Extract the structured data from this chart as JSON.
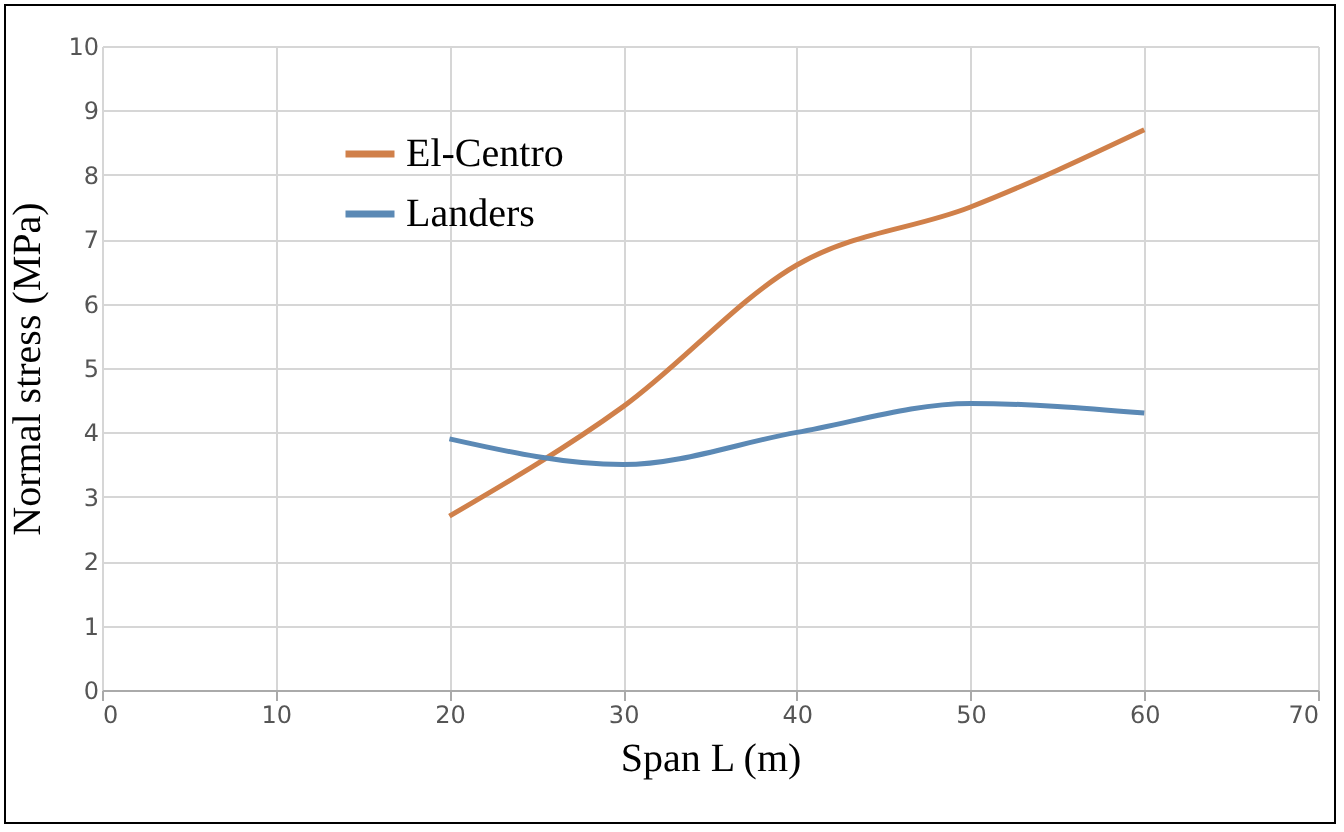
{
  "chart_data": {
    "type": "line",
    "xlabel": "Span L (m)",
    "ylabel": "Normal stress (MPa)",
    "x": [
      20,
      30,
      40,
      50,
      60
    ],
    "series": [
      {
        "name": "El-Centro",
        "color": "#d0804a",
        "values": [
          2.7,
          4.4,
          6.6,
          7.5,
          8.7
        ]
      },
      {
        "name": "Landers",
        "color": "#5b89b5",
        "values": [
          3.9,
          3.5,
          4.0,
          4.45,
          4.3
        ]
      }
    ],
    "xlim": [
      0,
      70
    ],
    "xticks": [
      0,
      10,
      20,
      30,
      40,
      50,
      60,
      70
    ],
    "ylim": [
      0,
      10
    ],
    "yticks": [
      0,
      1,
      2,
      3,
      4,
      5,
      6,
      7,
      8,
      9,
      10
    ],
    "grid": true,
    "legend": "top left",
    "marker": "none",
    "line_style": "solid"
  }
}
